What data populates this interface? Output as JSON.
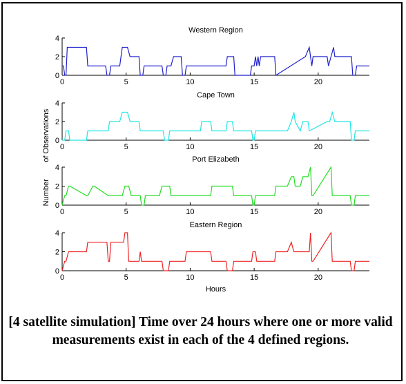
{
  "caption": "[4 satellite simulation]  Time over 24 hours where one or more valid measurements exist in each of the 4 defined regions.",
  "chart_data": [
    {
      "type": "line",
      "title": "Western Region",
      "xlabel": "",
      "ylabel": "",
      "xlim": [
        0,
        24
      ],
      "ylim": [
        0,
        4
      ],
      "yticks": [
        0,
        2,
        4
      ],
      "xticks": [
        0,
        5,
        10,
        15,
        20
      ],
      "color": "#1f1fcc",
      "series": [
        {
          "x": [
            0,
            0.1,
            0.2,
            0.3,
            0.4,
            1.9,
            2.0,
            3.4,
            3.5,
            3.7,
            3.8,
            4.5,
            4.7,
            5.1,
            5.3,
            6.0,
            6.1,
            6.3,
            6.4,
            7.8,
            7.9,
            8.1,
            8.2,
            8.5,
            8.7,
            9.3,
            9.4,
            9.6,
            9.7,
            11.0,
            11.1,
            12.8,
            12.9,
            13.4,
            13.5,
            14.7,
            14.8,
            15.0,
            15.1,
            15.2,
            15.3,
            15.4,
            15.5,
            16.6,
            16.7,
            19.0,
            19.3,
            19.4,
            19.5,
            19.6,
            19.8,
            20.7,
            20.8,
            21.0,
            21.2,
            21.3,
            21.5,
            22.6,
            22.7,
            22.9,
            23.0,
            24.0
          ],
          "values": [
            1,
            1,
            0,
            0,
            3,
            3,
            1,
            1,
            0,
            0,
            1,
            1,
            3,
            3,
            2,
            2,
            0,
            0,
            1,
            1,
            0,
            0,
            1,
            1,
            2,
            2,
            0,
            0,
            1,
            1,
            1,
            1,
            2,
            2,
            0,
            0,
            1,
            1,
            2,
            1,
            2,
            1,
            2,
            2,
            0,
            2,
            3,
            2,
            1,
            2,
            2,
            2,
            1,
            2,
            3,
            2,
            2,
            2,
            0,
            0,
            1,
            1
          ]
        }
      ]
    },
    {
      "type": "line",
      "title": "Cape Town",
      "xlabel": "",
      "ylabel": "",
      "xlim": [
        0,
        24
      ],
      "ylim": [
        0,
        4
      ],
      "yticks": [
        0,
        2,
        4
      ],
      "xticks": [
        0,
        5,
        10,
        15,
        20
      ],
      "color": "#22e5e5",
      "series": [
        {
          "x": [
            0,
            0.2,
            0.3,
            0.5,
            0.6,
            1.9,
            2.0,
            3.6,
            3.7,
            4.5,
            4.7,
            5.1,
            5.3,
            6.0,
            6.1,
            7.9,
            8.0,
            8.3,
            8.4,
            9.6,
            9.7,
            10.8,
            10.9,
            11.6,
            11.7,
            12.8,
            12.9,
            13.3,
            13.4,
            14.8,
            14.9,
            15.0,
            15.1,
            16.4,
            16.5,
            17.6,
            17.9,
            18.1,
            18.2,
            18.6,
            18.8,
            19.2,
            19.3,
            20.7,
            20.9,
            21.1,
            21.3,
            22.5,
            22.6,
            22.8,
            22.9,
            24.0
          ],
          "values": [
            0,
            0,
            1,
            1,
            0,
            0,
            1,
            1,
            2,
            2,
            3,
            3,
            2,
            2,
            1,
            1,
            0,
            0,
            1,
            1,
            1,
            1,
            2,
            2,
            1,
            1,
            2,
            2,
            1,
            1,
            0,
            0,
            1,
            1,
            1,
            1,
            2,
            3,
            2,
            1,
            2,
            2,
            1,
            2,
            2,
            3,
            2,
            2,
            0,
            0,
            1,
            1
          ]
        }
      ]
    },
    {
      "type": "line",
      "title": "Port Elizabeth",
      "xlabel": "",
      "ylabel": "",
      "xlim": [
        0,
        24
      ],
      "ylim": [
        0,
        4
      ],
      "yticks": [
        0,
        2,
        4
      ],
      "xticks": [
        0,
        5,
        10,
        15,
        20
      ],
      "color": "#22dd22",
      "series": [
        {
          "x": [
            0,
            0.2,
            0.3,
            0.5,
            0.6,
            1.9,
            2.0,
            2.4,
            2.5,
            3.6,
            3.7,
            4.7,
            4.9,
            5.2,
            5.4,
            6.1,
            6.2,
            6.4,
            6.5,
            7.6,
            7.8,
            8.4,
            8.5,
            9.7,
            9.8,
            11.6,
            11.7,
            13.3,
            13.4,
            14.8,
            14.9,
            15.0,
            15.1,
            16.6,
            16.7,
            17.6,
            17.9,
            18.1,
            18.2,
            18.6,
            18.8,
            19.2,
            19.4,
            19.5,
            19.6,
            21.0,
            21.1,
            21.3,
            22.5,
            22.6,
            22.8,
            22.9,
            24.0
          ],
          "values": [
            0,
            1,
            1,
            2,
            2,
            1,
            1,
            2,
            2,
            1,
            1,
            1,
            2,
            2,
            1,
            1,
            0,
            0,
            1,
            1,
            2,
            2,
            1,
            1,
            1,
            1,
            2,
            2,
            1,
            1,
            0,
            0,
            1,
            1,
            2,
            2,
            3,
            3,
            2,
            2,
            3,
            3,
            4,
            1,
            1,
            4,
            1,
            1,
            1,
            0,
            0,
            1,
            1
          ]
        }
      ]
    },
    {
      "type": "line",
      "title": "Eastern Region",
      "xlabel": "Hours",
      "ylabel": "",
      "xlim": [
        0,
        24
      ],
      "ylim": [
        0,
        4
      ],
      "yticks": [
        0,
        2,
        4
      ],
      "xticks": [
        0,
        5,
        10,
        15,
        20
      ],
      "color": "#ee2222",
      "series": [
        {
          "x": [
            0,
            0.2,
            0.3,
            0.5,
            0.6,
            1.9,
            2.0,
            3.5,
            3.6,
            3.7,
            3.8,
            4.8,
            4.9,
            5.1,
            5.2,
            6.0,
            6.1,
            6.2,
            6.4,
            7.8,
            7.9,
            8.3,
            8.4,
            9.6,
            9.7,
            11.6,
            11.7,
            12.8,
            12.9,
            13.3,
            13.4,
            14.8,
            14.9,
            15.1,
            15.2,
            16.6,
            16.7,
            17.6,
            17.9,
            18.1,
            18.2,
            19.3,
            19.4,
            19.5,
            19.6,
            21.0,
            21.1,
            21.2,
            21.3,
            22.5,
            22.6,
            22.8,
            22.9,
            24.0
          ],
          "values": [
            0,
            1,
            1,
            2,
            2,
            2,
            3,
            3,
            1,
            1,
            3,
            3,
            4,
            4,
            1,
            1,
            2,
            1,
            1,
            1,
            0,
            0,
            1,
            1,
            2,
            2,
            1,
            1,
            0,
            0,
            1,
            1,
            2,
            2,
            1,
            1,
            2,
            2,
            3,
            2,
            2,
            2,
            4,
            1,
            1,
            4,
            1,
            1,
            1,
            1,
            0,
            0,
            1,
            1
          ]
        }
      ]
    }
  ],
  "shared_ylabel": "Number        of Observations"
}
